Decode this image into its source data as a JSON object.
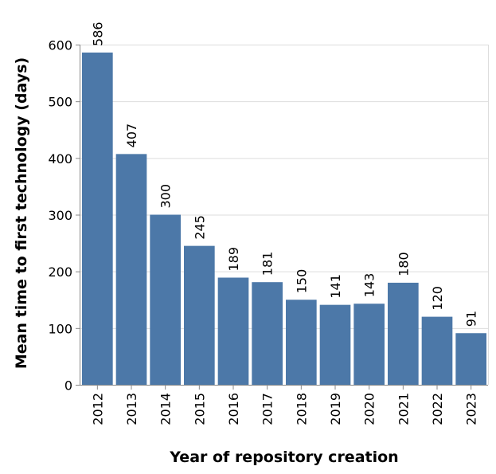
{
  "chart_data": {
    "type": "bar",
    "title": "",
    "xlabel": "Year of repository creation",
    "ylabel": "Mean time to first technology (days)",
    "categories": [
      "2012",
      "2013",
      "2014",
      "2015",
      "2016",
      "2017",
      "2018",
      "2019",
      "2020",
      "2021",
      "2022",
      "2023"
    ],
    "values": [
      586,
      407,
      300,
      245,
      189,
      181,
      150,
      141,
      143,
      180,
      120,
      91
    ],
    "data_labels": [
      "586",
      "407",
      "300",
      "245",
      "189",
      "181",
      "150",
      "141",
      "143",
      "180",
      "120",
      "91"
    ],
    "ylim": [
      0,
      600
    ],
    "y_ticks": [
      0,
      100,
      200,
      300,
      400,
      500,
      600
    ],
    "y_tick_labels": [
      "0",
      "100",
      "200",
      "300",
      "400",
      "500",
      "600"
    ],
    "grid": true,
    "bar_color": "#4c78a8"
  }
}
